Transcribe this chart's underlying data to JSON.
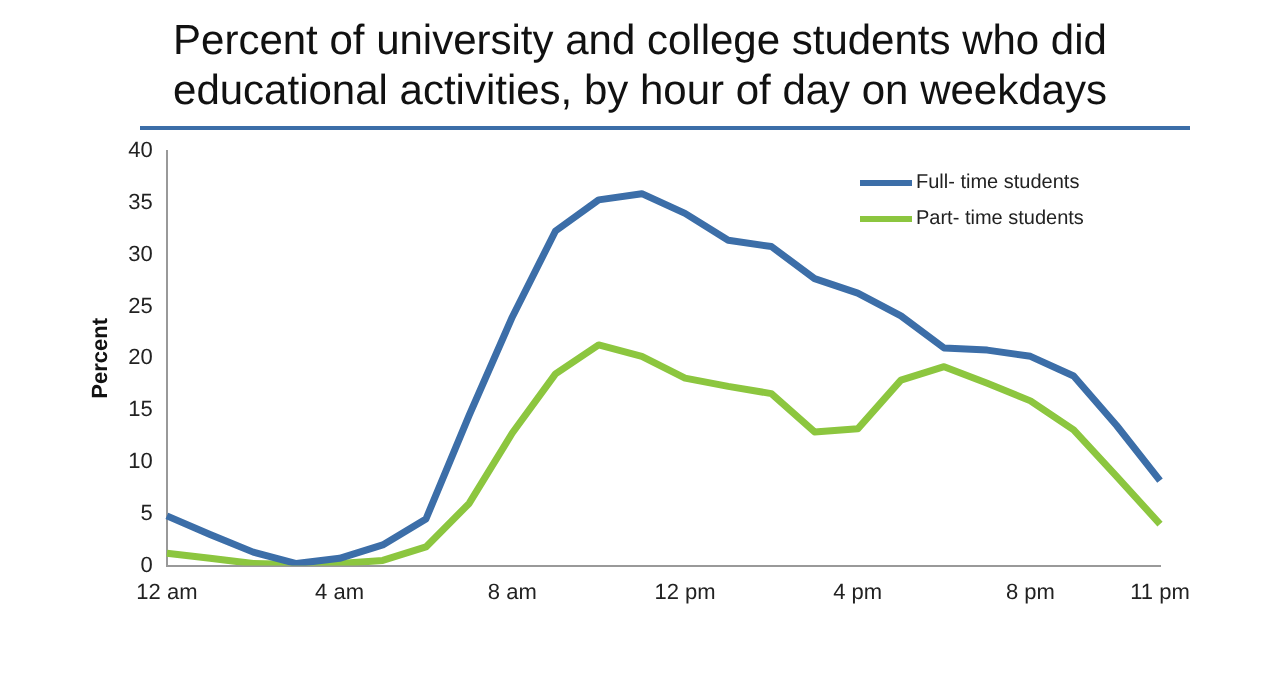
{
  "chart_data": {
    "type": "line",
    "title": "Percent of university and college students who did educational activities, by hour of day on weekdays",
    "ylabel": "Percent",
    "categories": [
      "12 am",
      null,
      null,
      null,
      "4 am",
      null,
      null,
      null,
      "8 am",
      null,
      null,
      null,
      "12 pm",
      null,
      null,
      null,
      "4 pm",
      null,
      null,
      null,
      "8 pm",
      null,
      null,
      "11 pm"
    ],
    "series": [
      {
        "name": "Full- time students",
        "color": "#3c6ea8",
        "values": [
          4.8,
          3,
          1.3,
          0.2,
          0.7,
          2,
          4.5,
          14.5,
          24,
          32.3,
          35.3,
          35.9,
          34,
          31.4,
          30.8,
          27.7,
          26.3,
          24.1,
          21,
          20.8,
          20.2,
          18.3,
          13.5,
          8.2
        ]
      },
      {
        "name": "Part- time students",
        "color": "#8cc63f",
        "values": [
          1.2,
          0.7,
          0.2,
          0.1,
          0.2,
          0.5,
          1.8,
          6,
          12.8,
          18.5,
          21.3,
          20.2,
          18.1,
          17.3,
          16.6,
          12.9,
          13.2,
          17.9,
          19.2,
          17.6,
          15.9,
          13.1,
          8.6,
          4.0
        ]
      }
    ],
    "ylim": [
      0,
      40
    ],
    "yticks": [
      0,
      5,
      10,
      15,
      20,
      25,
      30,
      35,
      40
    ],
    "grid": false,
    "legend": "top right",
    "marker": "none",
    "line_style": "solid"
  }
}
